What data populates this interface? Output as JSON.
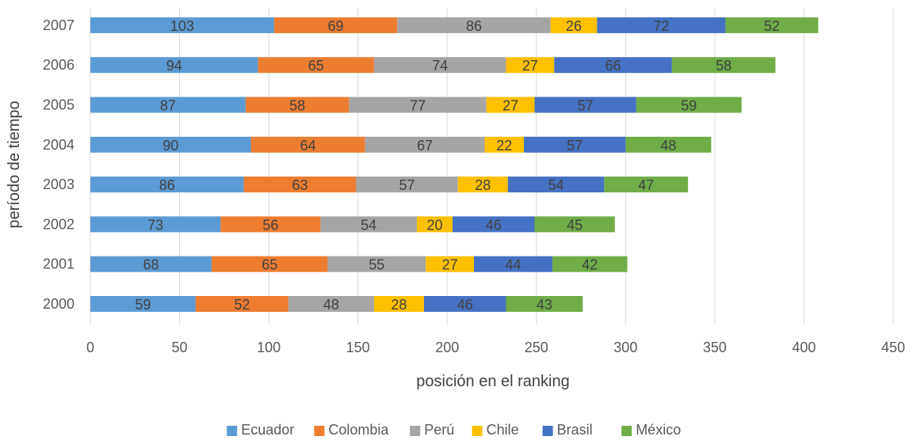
{
  "chart_data": {
    "type": "bar",
    "orientation": "horizontal",
    "stacked": true,
    "title": "",
    "xlabel": "posición en el ranking",
    "ylabel": "período de tiempo",
    "xlim": [
      0,
      450
    ],
    "xticks": [
      "0",
      "50",
      "100",
      "150",
      "200",
      "250",
      "300",
      "350",
      "400",
      "450"
    ],
    "grid": true,
    "legend_position": "bottom",
    "categories": [
      "2000",
      "2001",
      "2002",
      "2003",
      "2004",
      "2005",
      "2006",
      "2007"
    ],
    "series": [
      {
        "name": "Ecuador",
        "color": "#5B9BD5",
        "values": [
          59,
          68,
          73,
          86,
          90,
          87,
          94,
          103
        ]
      },
      {
        "name": "Colombia",
        "color": "#ED7D31",
        "values": [
          52,
          65,
          56,
          63,
          64,
          58,
          65,
          69
        ]
      },
      {
        "name": "Perú",
        "color": "#A5A5A5",
        "values": [
          48,
          55,
          54,
          57,
          67,
          77,
          74,
          86
        ]
      },
      {
        "name": "Chile",
        "color": "#FFC000",
        "values": [
          28,
          27,
          20,
          28,
          22,
          27,
          27,
          26
        ]
      },
      {
        "name": "Brasil",
        "color": "#4472C4",
        "values": [
          46,
          44,
          46,
          54,
          57,
          57,
          66,
          72
        ]
      },
      {
        "name": "México",
        "color": "#70AD47",
        "values": [
          43,
          42,
          45,
          47,
          48,
          59,
          58,
          52
        ]
      }
    ]
  }
}
